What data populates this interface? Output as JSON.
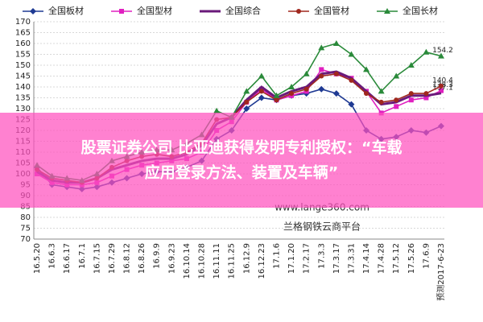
{
  "chart_data": {
    "type": "line",
    "categories": [
      "16.5.20",
      "16.6.3",
      "16.6.17",
      "16.7.1",
      "16.7.15",
      "16.7.29",
      "16.8.12",
      "16.8.26",
      "16.9.9",
      "16.9.23",
      "16.10.14",
      "16.10.28",
      "16.11.11",
      "16.11.25",
      "16.12.9",
      "16.12.23",
      "17.1.6",
      "17.1.20",
      "17.2.17",
      "17.3.3",
      "17.3.17",
      "17.3.31",
      "17.4.14",
      "17.4.28",
      "17.5.12",
      "17.5.26",
      "17.6.9",
      "预测2017-6-23"
    ],
    "series": [
      {
        "name": "全国板材",
        "color": "#1f3a93",
        "marker": "diamond",
        "values": [
          103,
          95,
          94,
          93,
          94,
          96,
          98,
          100,
          101,
          101,
          103,
          106,
          116,
          120,
          130,
          135,
          134,
          136,
          137,
          139,
          137,
          132,
          120,
          116,
          117,
          120,
          119,
          122
        ]
      },
      {
        "name": "全国型材",
        "color": "#e020c0",
        "marker": "square",
        "values": [
          100,
          96,
          95,
          95,
          96,
          99,
          102,
          104,
          105,
          106,
          107,
          110,
          120,
          124,
          133,
          139,
          134,
          136,
          138,
          148,
          146,
          144,
          138,
          128,
          131,
          134,
          135,
          138.3
        ]
      },
      {
        "name": "全国综合",
        "color": "#6a1a7a",
        "marker": "none",
        "values": [
          101,
          97,
          96,
          96,
          98,
          102,
          104,
          106,
          107,
          107,
          109,
          113,
          123,
          126,
          134,
          140,
          135,
          138,
          140,
          146,
          147,
          144,
          138,
          132,
          133,
          136,
          136,
          137.1
        ]
      },
      {
        "name": "全国管材",
        "color": "#a0281e",
        "marker": "circle",
        "values": [
          102,
          98,
          97,
          96,
          98,
          103,
          106,
          108,
          109,
          108,
          110,
          114,
          125,
          126,
          133,
          138,
          134,
          137,
          139,
          145,
          146,
          143,
          137,
          133,
          134,
          137,
          137,
          140.4
        ]
      },
      {
        "name": "全国长材",
        "color": "#2a8a3a",
        "marker": "triangle",
        "values": [
          104,
          99,
          98,
          97,
          100,
          106,
          108,
          110,
          111,
          111,
          114,
          118,
          129,
          126,
          138,
          145,
          136,
          140,
          146,
          158,
          160,
          155,
          148,
          138,
          145,
          150,
          156,
          154.2
        ]
      }
    ],
    "ylim": [
      70,
      170
    ],
    "yticks": [
      70,
      75,
      80,
      85,
      90,
      95,
      100,
      105,
      110,
      115,
      120,
      125,
      130,
      135,
      140,
      145,
      150,
      155,
      160,
      165,
      170
    ],
    "grid": true
  },
  "watermark": [
    "www.lange360.com",
    "兰格钢铁云商平台"
  ],
  "banner": [
    "股票证券公司 比亚迪获得发明专利授权：“车载",
    "应用登录方法、装置及车辆”"
  ]
}
